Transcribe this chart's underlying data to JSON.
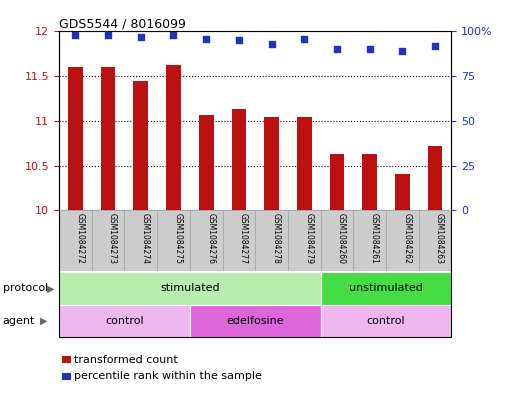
{
  "title": "GDS5544 / 8016099",
  "samples": [
    "GSM1084272",
    "GSM1084273",
    "GSM1084274",
    "GSM1084275",
    "GSM1084276",
    "GSM1084277",
    "GSM1084278",
    "GSM1084279",
    "GSM1084260",
    "GSM1084261",
    "GSM1084262",
    "GSM1084263"
  ],
  "bar_values": [
    11.6,
    11.6,
    11.45,
    11.62,
    11.07,
    11.13,
    11.04,
    11.04,
    10.63,
    10.63,
    10.4,
    10.72
  ],
  "dot_values": [
    98,
    98,
    97,
    98,
    96,
    95,
    93,
    96,
    90,
    90,
    89,
    92
  ],
  "ylim_left": [
    10,
    12
  ],
  "ylim_right": [
    0,
    100
  ],
  "yticks_left": [
    10,
    10.5,
    11,
    11.5,
    12
  ],
  "ytick_labels_left": [
    "10",
    "10.5",
    "11",
    "11.5",
    "12"
  ],
  "yticks_right": [
    0,
    25,
    50,
    75,
    100
  ],
  "ytick_labels_right": [
    "0",
    "25",
    "50",
    "75",
    "100%"
  ],
  "bar_color": "#bb1111",
  "dot_color": "#2233bb",
  "protocol_groups": [
    {
      "label": "stimulated",
      "start": 0,
      "end": 8,
      "color": "#b8edb0"
    },
    {
      "label": "unstimulated",
      "start": 8,
      "end": 12,
      "color": "#44dd44"
    }
  ],
  "agent_groups": [
    {
      "label": "control",
      "start": 0,
      "end": 4,
      "color": "#eeb8ee"
    },
    {
      "label": "edelfosine",
      "start": 4,
      "end": 8,
      "color": "#dd66dd"
    },
    {
      "label": "control",
      "start": 8,
      "end": 12,
      "color": "#eeb8ee"
    }
  ],
  "legend_items": [
    {
      "label": "transformed count",
      "color": "#bb1111"
    },
    {
      "label": "percentile rank within the sample",
      "color": "#2233bb"
    }
  ],
  "protocol_label": "protocol",
  "agent_label": "agent",
  "background_color": "#ffffff",
  "sample_box_color": "#cccccc",
  "sample_box_edge": "#aaaaaa"
}
